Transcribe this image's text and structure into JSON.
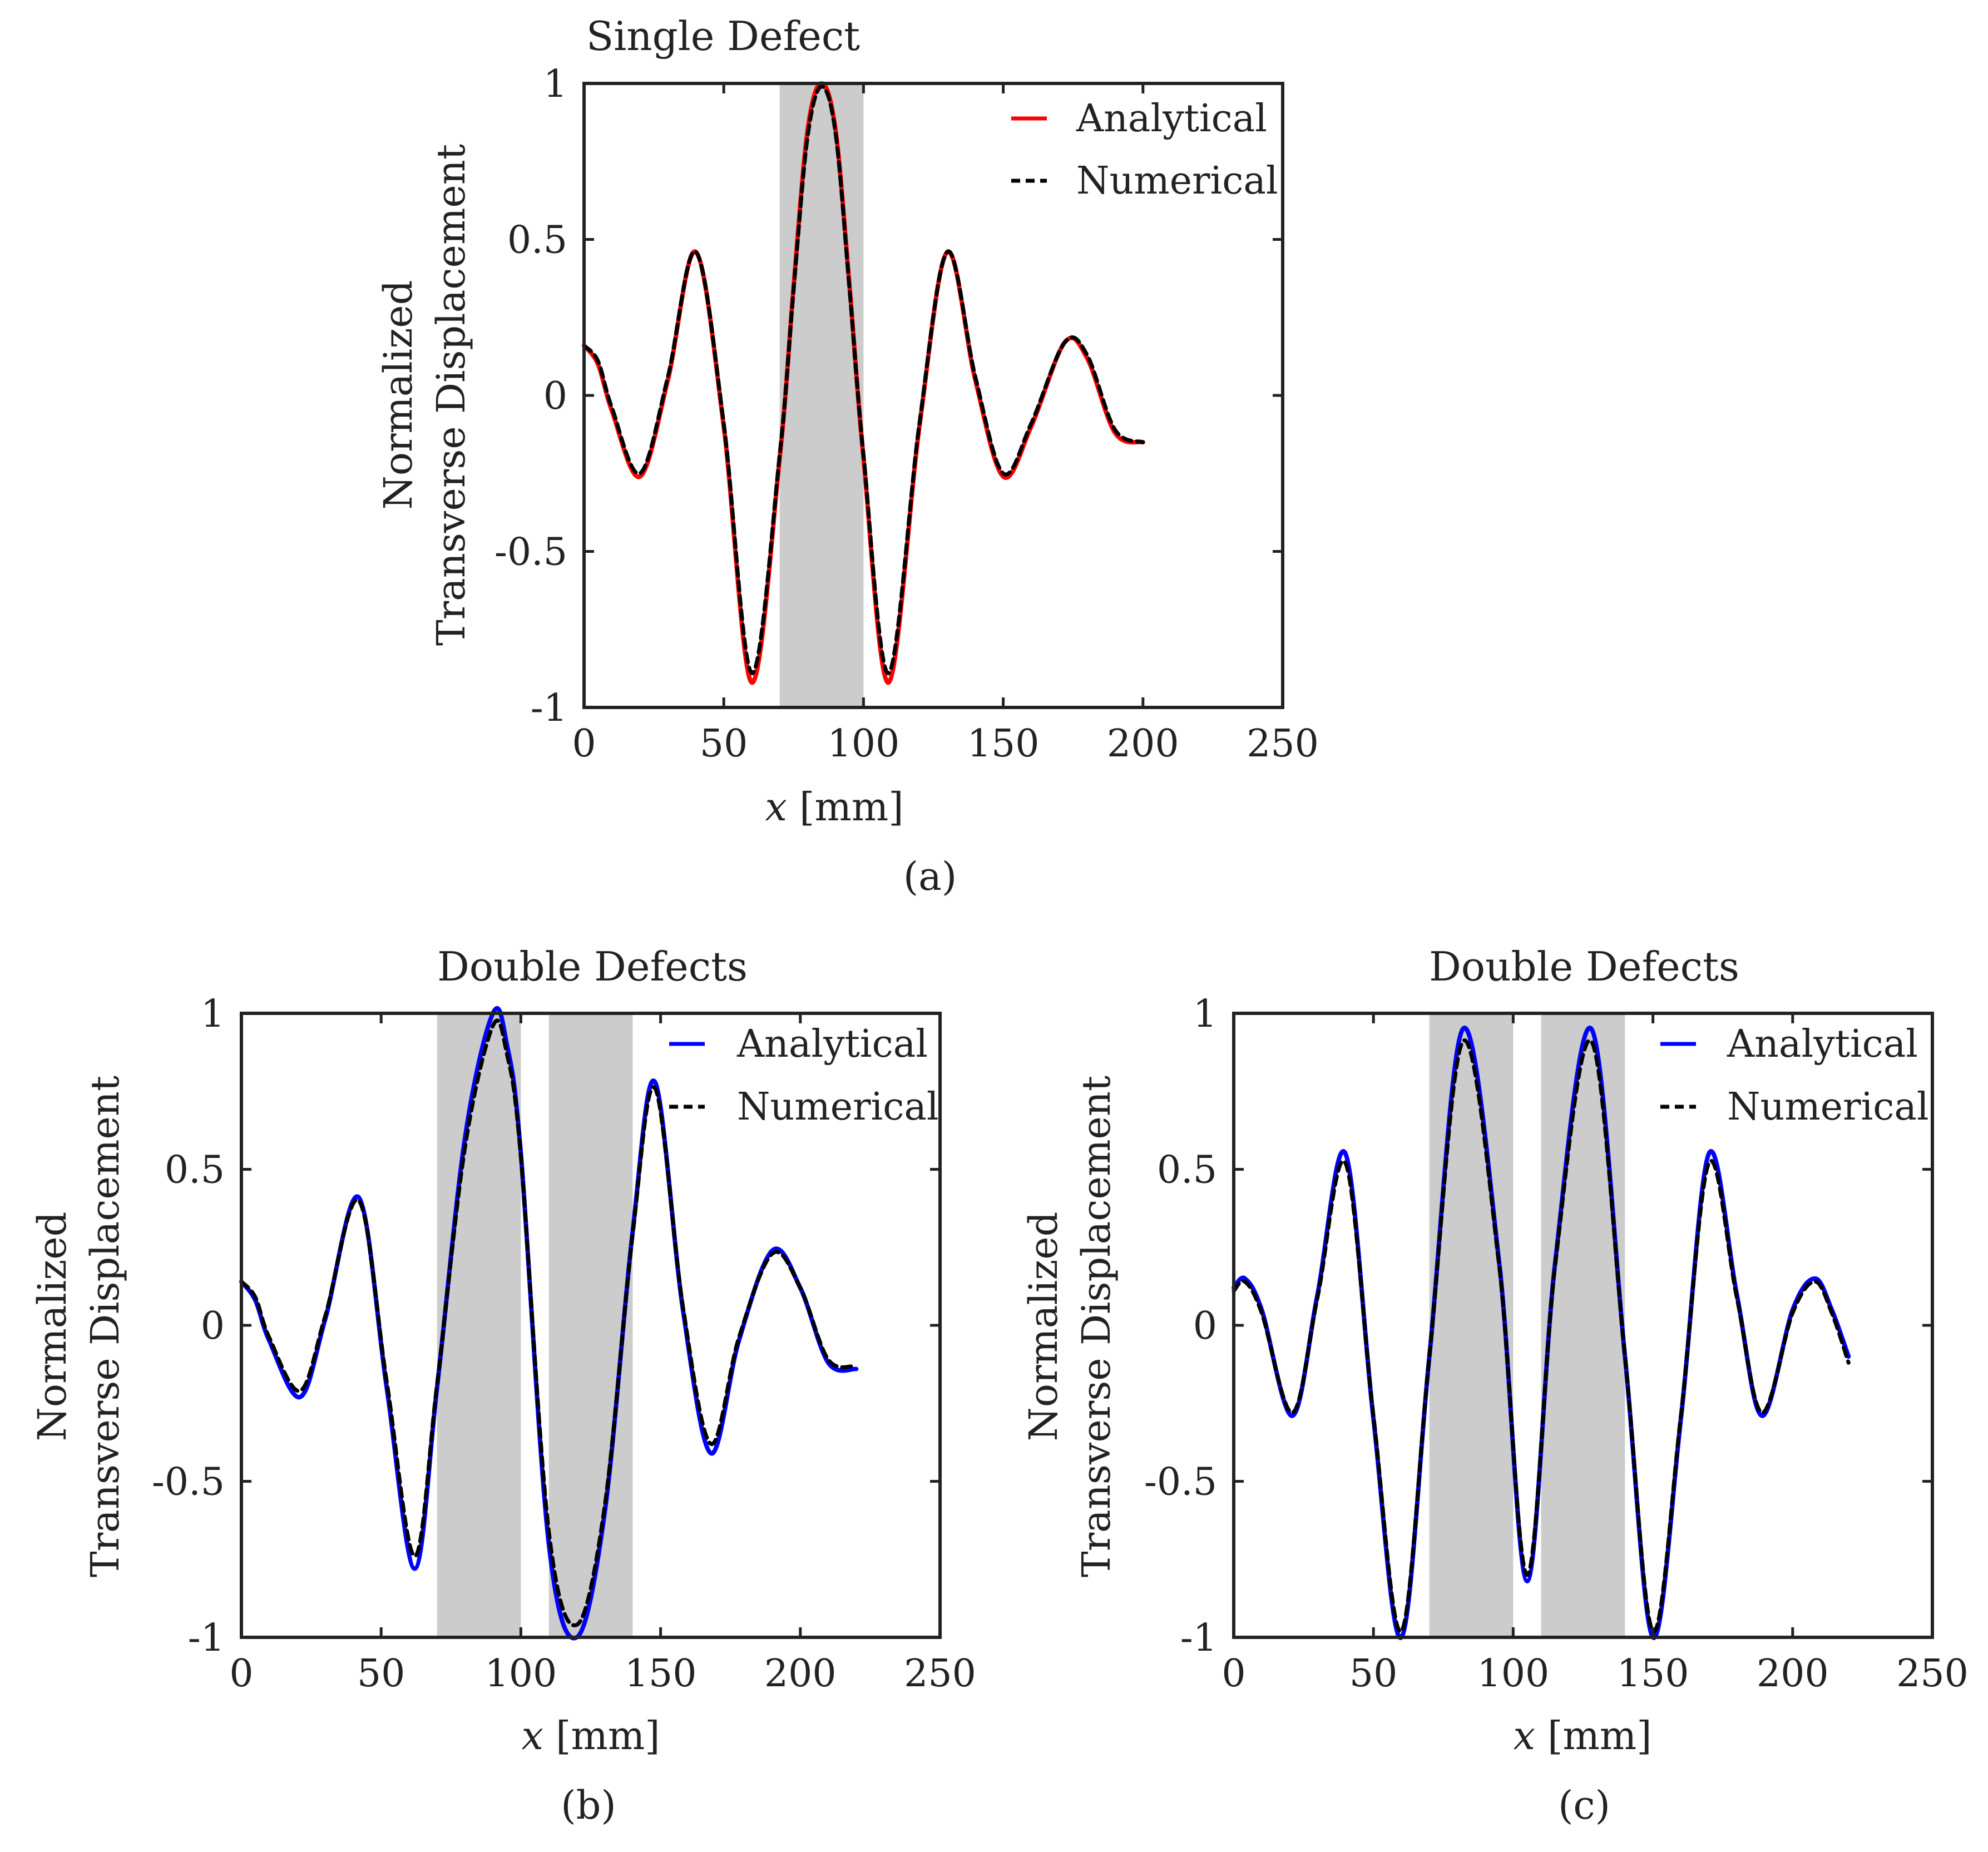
{
  "colors": {
    "analytical_a": "#ff0000",
    "analytical_bc": "#0000ff",
    "numerical": "#000000",
    "defect_region": "#cccccc",
    "axes": "#222222"
  },
  "chart_data": [
    {
      "type": "line",
      "panel": "a",
      "title": "Single Defect",
      "caption": "(a)",
      "xlabel_var": "x",
      "xlabel_unit": " [mm]",
      "ylabel_line1": "Normalized",
      "ylabel_line2": "Transverse Displacement",
      "xlim": [
        0,
        250
      ],
      "ylim": [
        -1,
        1
      ],
      "xticks": [
        0,
        50,
        100,
        150,
        200,
        250
      ],
      "yticks": [
        -1,
        -0.5,
        0,
        0.5,
        1
      ],
      "xtick_labels": [
        "0",
        "50",
        "100",
        "150",
        "200",
        "250"
      ],
      "ytick_labels": [
        "-1",
        "-0.5",
        "0",
        "0.5",
        "1"
      ],
      "legend_position": "top-right",
      "defect_regions": [
        [
          70,
          100
        ]
      ],
      "series": [
        {
          "name": "Analytical",
          "style": "solid",
          "x": [
            0,
            5,
            10,
            20,
            30,
            40,
            50,
            60,
            70,
            75,
            80,
            85,
            90,
            95,
            100,
            109,
            120,
            130,
            140,
            150,
            160,
            172,
            180,
            190,
            200
          ],
          "y": [
            0.16,
            0.1,
            -0.05,
            -0.26,
            0.05,
            0.46,
            -0.1,
            -0.92,
            -0.2,
            0.35,
            0.85,
            1.0,
            0.85,
            0.35,
            -0.2,
            -0.92,
            -0.1,
            0.46,
            0.05,
            -0.26,
            -0.1,
            0.17,
            0.12,
            -0.12,
            -0.15
          ]
        },
        {
          "name": "Numerical",
          "style": "dashed",
          "x": [
            0,
            5,
            10,
            20,
            30,
            40,
            50,
            60,
            70,
            75,
            80,
            85,
            90,
            95,
            100,
            109,
            120,
            130,
            140,
            150,
            160,
            172,
            180,
            190,
            200
          ],
          "y": [
            0.16,
            0.11,
            -0.04,
            -0.25,
            0.06,
            0.46,
            -0.09,
            -0.89,
            -0.19,
            0.34,
            0.83,
            0.99,
            0.84,
            0.34,
            -0.19,
            -0.89,
            -0.09,
            0.46,
            0.06,
            -0.25,
            -0.09,
            0.17,
            0.13,
            -0.11,
            -0.15
          ]
        }
      ]
    },
    {
      "type": "line",
      "panel": "b",
      "title": "Double Defects",
      "caption": "(b)",
      "xlabel_var": "x",
      "xlabel_unit": " [mm]",
      "ylabel_line1": "Normalized",
      "ylabel_line2": "Transverse Displacement",
      "xlim": [
        0,
        250
      ],
      "ylim": [
        -1,
        1
      ],
      "xticks": [
        0,
        50,
        100,
        150,
        200,
        250
      ],
      "yticks": [
        -1,
        -0.5,
        0,
        0.5,
        1
      ],
      "xtick_labels": [
        "0",
        "50",
        "100",
        "150",
        "200",
        "250"
      ],
      "ytick_labels": [
        "-1",
        "-0.5",
        "0",
        "0.5",
        "1"
      ],
      "legend_position": "top-right",
      "defect_regions": [
        [
          70,
          100
        ],
        [
          110,
          140
        ]
      ],
      "series": [
        {
          "name": "Analytical",
          "style": "solid",
          "x": [
            0,
            5,
            10,
            21,
            30,
            42,
            52,
            62,
            70,
            80,
            90,
            95,
            100,
            110,
            120,
            130,
            140,
            148,
            158,
            168,
            178,
            190,
            200,
            210,
            220
          ],
          "y": [
            0.14,
            0.08,
            -0.05,
            -0.23,
            0.02,
            0.41,
            -0.2,
            -0.78,
            -0.2,
            0.6,
            1.0,
            0.9,
            0.55,
            -0.7,
            -1.0,
            -0.6,
            0.3,
            0.78,
            0.05,
            -0.41,
            -0.05,
            0.24,
            0.12,
            -0.12,
            -0.14
          ]
        },
        {
          "name": "Numerical",
          "style": "dashed",
          "x": [
            0,
            5,
            10,
            21,
            30,
            42,
            52,
            62,
            70,
            80,
            90,
            95,
            100,
            110,
            120,
            130,
            140,
            148,
            158,
            168,
            178,
            190,
            200,
            210,
            220
          ],
          "y": [
            0.14,
            0.09,
            -0.04,
            -0.21,
            0.03,
            0.4,
            -0.18,
            -0.74,
            -0.19,
            0.57,
            0.96,
            0.87,
            0.54,
            -0.66,
            -0.96,
            -0.58,
            0.29,
            0.76,
            0.06,
            -0.38,
            -0.04,
            0.23,
            0.12,
            -0.11,
            -0.13
          ]
        }
      ]
    },
    {
      "type": "line",
      "panel": "c",
      "title": "Double Defects",
      "caption": "(c)",
      "xlabel_var": "x",
      "xlabel_unit": " [mm]",
      "ylabel_line1": "Normalized",
      "ylabel_line2": "Transverse Displacement",
      "xlim": [
        0,
        250
      ],
      "ylim": [
        -1,
        1
      ],
      "xticks": [
        0,
        50,
        100,
        150,
        200,
        250
      ],
      "yticks": [
        -1,
        -0.5,
        0,
        0.5,
        1
      ],
      "xtick_labels": [
        "0",
        "50",
        "100",
        "150",
        "200",
        "250"
      ],
      "ytick_labels": [
        "-1",
        "-0.5",
        "0",
        "0.5",
        "1"
      ],
      "legend_position": "top-right",
      "defect_regions": [
        [
          70,
          100
        ],
        [
          110,
          140
        ]
      ],
      "series": [
        {
          "name": "Analytical",
          "style": "solid",
          "x": [
            0,
            4,
            10,
            21,
            30,
            40,
            50,
            60,
            70,
            82,
            95,
            105,
            115,
            128,
            140,
            150,
            160,
            170,
            180,
            189,
            200,
            208,
            214,
            220
          ],
          "y": [
            0.12,
            0.15,
            0.05,
            -0.29,
            0.1,
            0.55,
            -0.3,
            -1.0,
            -0.1,
            0.95,
            0.2,
            -0.82,
            0.2,
            0.95,
            -0.1,
            -1.0,
            -0.3,
            0.55,
            0.1,
            -0.29,
            0.05,
            0.15,
            0.05,
            -0.1
          ]
        },
        {
          "name": "Numerical",
          "style": "dashed",
          "x": [
            0,
            4,
            10,
            21,
            30,
            40,
            50,
            60,
            70,
            82,
            95,
            105,
            115,
            128,
            140,
            150,
            160,
            170,
            180,
            189,
            200,
            208,
            214,
            220
          ],
          "y": [
            0.11,
            0.14,
            0.04,
            -0.28,
            0.09,
            0.52,
            -0.29,
            -0.98,
            -0.1,
            0.91,
            0.19,
            -0.8,
            0.19,
            0.91,
            -0.1,
            -0.98,
            -0.29,
            0.52,
            0.09,
            -0.28,
            0.04,
            0.14,
            0.04,
            -0.12
          ]
        }
      ]
    }
  ]
}
